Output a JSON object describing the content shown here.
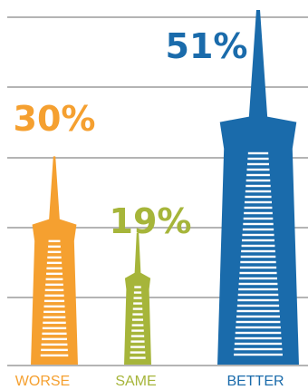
{
  "chart_data": {
    "type": "bar",
    "categories": [
      "WORSE",
      "SAME",
      "BETTER"
    ],
    "values": [
      30,
      19,
      51
    ],
    "value_labels": [
      "30%",
      "19%",
      "51%"
    ],
    "colors": [
      "#f5a030",
      "#a6b53a",
      "#1a6bab"
    ],
    "ylim": [
      0,
      60
    ],
    "grid": true,
    "grid_color": "#b4b4b4",
    "title": "",
    "xlabel": "",
    "ylabel": ""
  }
}
